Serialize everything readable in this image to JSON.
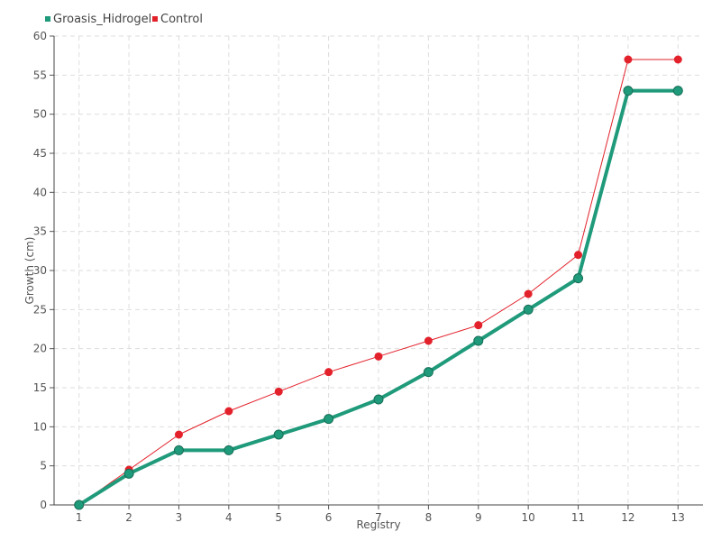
{
  "chart_data": {
    "type": "line",
    "xlabel": "Registry",
    "ylabel": "Growth (cm)",
    "x": [
      1,
      2,
      3,
      4,
      5,
      6,
      7,
      8,
      9,
      10,
      11,
      12,
      13
    ],
    "ylim": [
      0,
      60
    ],
    "yticks": [
      0,
      5,
      10,
      15,
      20,
      25,
      30,
      35,
      40,
      45,
      50,
      55,
      60
    ],
    "grid": true,
    "legend_position": "top-left",
    "series": [
      {
        "name": "Groasis_Hidrogel",
        "color": "#1f9a7a",
        "values": [
          0,
          4,
          7,
          7,
          9,
          11,
          13.5,
          17,
          21,
          25,
          29,
          53,
          53
        ]
      },
      {
        "name": "Control",
        "color": "#e3212b",
        "values": [
          0,
          4.5,
          9,
          12,
          14.5,
          17,
          19,
          21,
          23,
          27,
          32,
          57,
          57
        ]
      }
    ]
  }
}
